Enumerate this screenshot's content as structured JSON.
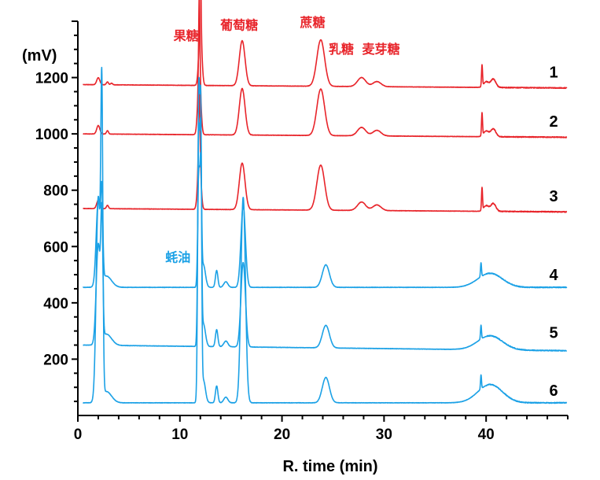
{
  "colors": {
    "sugar": "#e8242a",
    "oyster": "#1ba1e6",
    "axis": "#000000"
  },
  "chart_data": {
    "type": "line",
    "title": "",
    "xlabel": "R. time (min)",
    "ylabel": "(mV)",
    "xlim": [
      0,
      48
    ],
    "ylim": [
      0,
      1400
    ],
    "xticks": [
      0,
      10,
      20,
      30,
      40
    ],
    "yticks": [
      200,
      400,
      600,
      800,
      1000,
      1200
    ],
    "grid": false,
    "series": [
      {
        "label": "1",
        "color": "#e8242a",
        "base": 1175,
        "drift": -12,
        "peaks": [
          [
            2.0,
            25,
            0.15
          ],
          [
            2.9,
            10,
            0.1
          ],
          [
            3.3,
            6,
            0.1
          ],
          [
            12.0,
            200,
            0.15
          ],
          [
            12.0,
            300,
            0.06
          ],
          [
            16.1,
            160,
            0.28
          ],
          [
            23.8,
            165,
            0.38
          ],
          [
            27.8,
            32,
            0.4
          ],
          [
            29.3,
            18,
            0.4
          ],
          [
            39.6,
            75,
            0.05
          ],
          [
            40.0,
            20,
            0.25
          ],
          [
            40.7,
            30,
            0.25
          ]
        ]
      },
      {
        "label": "2",
        "color": "#e8242a",
        "base": 1000,
        "drift": -12,
        "peaks": [
          [
            2.0,
            30,
            0.15
          ],
          [
            2.9,
            12,
            0.1
          ],
          [
            11.9,
            220,
            0.15
          ],
          [
            11.9,
            280,
            0.06
          ],
          [
            16.1,
            165,
            0.28
          ],
          [
            23.8,
            165,
            0.38
          ],
          [
            27.8,
            30,
            0.4
          ],
          [
            29.3,
            20,
            0.4
          ],
          [
            39.6,
            80,
            0.05
          ],
          [
            40.0,
            20,
            0.25
          ],
          [
            40.7,
            28,
            0.25
          ]
        ]
      },
      {
        "label": "3",
        "color": "#e8242a",
        "base": 735,
        "drift": -12,
        "peaks": [
          [
            2.0,
            30,
            0.15
          ],
          [
            2.9,
            12,
            0.1
          ],
          [
            11.9,
            210,
            0.15
          ],
          [
            11.9,
            250,
            0.06
          ],
          [
            16.1,
            165,
            0.28
          ],
          [
            23.8,
            160,
            0.38
          ],
          [
            27.8,
            30,
            0.4
          ],
          [
            29.3,
            20,
            0.4
          ],
          [
            39.6,
            80,
            0.05
          ],
          [
            40.0,
            20,
            0.25
          ],
          [
            40.7,
            28,
            0.25
          ]
        ]
      },
      {
        "label": "4",
        "color": "#1ba1e6",
        "base": 455,
        "drift": 0,
        "peaks": [
          [
            2.0,
            300,
            0.2
          ],
          [
            2.35,
            280,
            0.1
          ],
          [
            2.8,
            40,
            0.5
          ],
          [
            11.85,
            400,
            0.1
          ],
          [
            12.05,
            380,
            0.08
          ],
          [
            12.3,
            80,
            0.2
          ],
          [
            13.6,
            60,
            0.12
          ],
          [
            14.5,
            20,
            0.2
          ],
          [
            16.2,
            290,
            0.22
          ],
          [
            24.3,
            80,
            0.35
          ],
          [
            39.5,
            50,
            0.05
          ],
          [
            40.4,
            50,
            1.2
          ]
        ]
      },
      {
        "label": "5",
        "color": "#1ba1e6",
        "base": 250,
        "drift": -20,
        "peaks": [
          [
            2.0,
            350,
            0.2
          ],
          [
            2.35,
            400,
            0.1
          ],
          [
            2.8,
            40,
            0.5
          ],
          [
            11.85,
            750,
            0.1
          ],
          [
            12.05,
            650,
            0.08
          ],
          [
            12.3,
            80,
            0.2
          ],
          [
            13.6,
            60,
            0.12
          ],
          [
            14.5,
            20,
            0.2
          ],
          [
            16.2,
            300,
            0.22
          ],
          [
            24.3,
            80,
            0.35
          ],
          [
            39.5,
            50,
            0.05
          ],
          [
            40.4,
            50,
            1.2
          ]
        ]
      },
      {
        "label": "6",
        "color": "#1ba1e6",
        "base": 45,
        "drift": 0,
        "peaks": [
          [
            2.0,
            720,
            0.2
          ],
          [
            2.35,
            1000,
            0.1
          ],
          [
            2.8,
            40,
            0.5
          ],
          [
            11.85,
            1100,
            0.1
          ],
          [
            12.05,
            900,
            0.08
          ],
          [
            12.3,
            80,
            0.2
          ],
          [
            13.6,
            60,
            0.12
          ],
          [
            14.5,
            20,
            0.2
          ],
          [
            16.2,
            730,
            0.22
          ],
          [
            24.3,
            90,
            0.35
          ],
          [
            39.5,
            50,
            0.05
          ],
          [
            40.4,
            65,
            1.2
          ]
        ]
      }
    ],
    "annotations": [
      {
        "text": "果糖",
        "x": 10.6,
        "y": 1333,
        "color": "#e8242a"
      },
      {
        "text": "葡萄糖",
        "x": 15.8,
        "y": 1370,
        "color": "#e8242a"
      },
      {
        "text": "蔗糖",
        "x": 23.0,
        "y": 1380,
        "color": "#e8242a"
      },
      {
        "text": "乳糖",
        "x": 25.8,
        "y": 1286,
        "color": "#e8242a"
      },
      {
        "text": "麦芽糖",
        "x": 29.7,
        "y": 1286,
        "color": "#e8242a"
      },
      {
        "text": "蚝油",
        "x": 9.8,
        "y": 547,
        "color": "#1ba1e6"
      }
    ]
  }
}
